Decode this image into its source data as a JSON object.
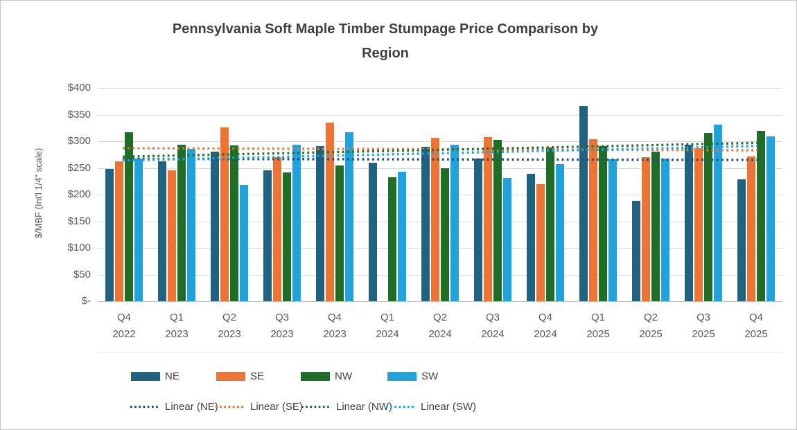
{
  "chart_data": {
    "type": "bar",
    "title": "Pennsylvania Soft Maple Timber Stumpage Price Comparison by Region",
    "title_lines": [
      "Pennsylvania Soft Maple Timber Stumpage Price Comparison by",
      "Region"
    ],
    "ylabel": "$/MBF (Int'l 1/4\" scale)",
    "xlabel": "",
    "ylim": [
      0,
      400
    ],
    "ytick_step": 50,
    "ytick_labels_top_to_bottom": [
      "$400",
      "$350",
      "$300",
      "$250",
      "$200",
      "$150",
      "$100",
      "$50",
      "$-"
    ],
    "grid": true,
    "legend_position": "bottom",
    "categories": [
      "Q4 2022",
      "Q1 2023",
      "Q2 2023",
      "Q3 2023",
      "Q4 2023",
      "Q1 2024",
      "Q2 2024",
      "Q3 2024",
      "Q4 2024",
      "Q1 2025",
      "Q2 2025",
      "Q3 2025",
      "Q4 2025"
    ],
    "series": [
      {
        "name": "NE",
        "color": "#1F6282",
        "values": [
          248,
          262,
          281,
          246,
          291,
          260,
          289,
          268,
          239,
          366,
          188,
          293,
          229
        ]
      },
      {
        "name": "SE",
        "color": "#ED7433",
        "values": [
          262,
          246,
          326,
          270,
          335,
          null,
          307,
          308,
          219,
          304,
          270,
          287,
          271
        ]
      },
      {
        "name": "NW",
        "color": "#1F6E27",
        "values": [
          317,
          293,
          292,
          242,
          254,
          232,
          250,
          302,
          288,
          291,
          281,
          315,
          320
        ]
      },
      {
        "name": "SW",
        "color": "#1FA3DC",
        "values": [
          268,
          286,
          218,
          294,
          317,
          243,
          294,
          231,
          257,
          266,
          267,
          331,
          309
        ]
      }
    ],
    "trendlines": [
      {
        "name": "Linear (NE)",
        "color": "#1F4E79",
        "start_value": 267,
        "end_value": 265
      },
      {
        "name": "Linear (SE)",
        "color": "#ED7433",
        "start_value": 287,
        "end_value": 283
      },
      {
        "name": "Linear (NW)",
        "color": "#1F6E27",
        "start_value": 271,
        "end_value": 297
      },
      {
        "name": "Linear (SW)",
        "color": "#1FA3DC",
        "start_value": 264,
        "end_value": 291
      }
    ]
  },
  "colors": {
    "gridline": "#D9D9D9",
    "axis_line": "#BFBFBF",
    "tick_text": "#595959",
    "title_text": "#404040"
  }
}
